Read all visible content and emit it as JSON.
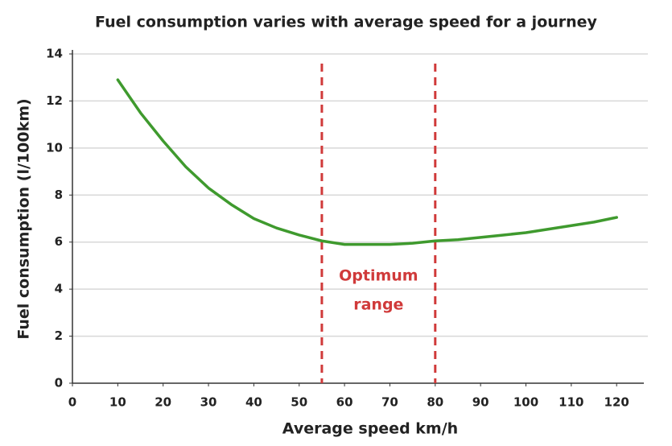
{
  "chart_data": {
    "type": "line",
    "title": "Fuel consumption varies with average speed for a journey",
    "x_label": "Average speed km/h",
    "y_label": "Fuel consumption (l/100km)",
    "x": [
      10,
      15,
      20,
      25,
      30,
      35,
      40,
      45,
      50,
      55,
      60,
      65,
      70,
      75,
      80,
      85,
      90,
      95,
      100,
      105,
      110,
      115,
      120
    ],
    "values": [
      12.9,
      11.5,
      10.3,
      9.2,
      8.3,
      7.6,
      7.0,
      6.6,
      6.3,
      6.05,
      5.9,
      5.9,
      5.9,
      5.95,
      6.05,
      6.1,
      6.2,
      6.3,
      6.4,
      6.55,
      6.7,
      6.85,
      7.05
    ],
    "color": "#3f9a2e",
    "xlim": [
      0,
      126
    ],
    "ylim": [
      0,
      14
    ],
    "xticks": [
      0,
      10,
      20,
      30,
      40,
      50,
      60,
      70,
      80,
      90,
      100,
      110,
      120
    ],
    "yticks": [
      0,
      2,
      4,
      6,
      8,
      10,
      12,
      14
    ],
    "grid": true,
    "vlines": [
      55,
      80
    ],
    "vline_color": "#d03a3a",
    "annotation_lines": [
      "Optimum",
      "range"
    ]
  }
}
